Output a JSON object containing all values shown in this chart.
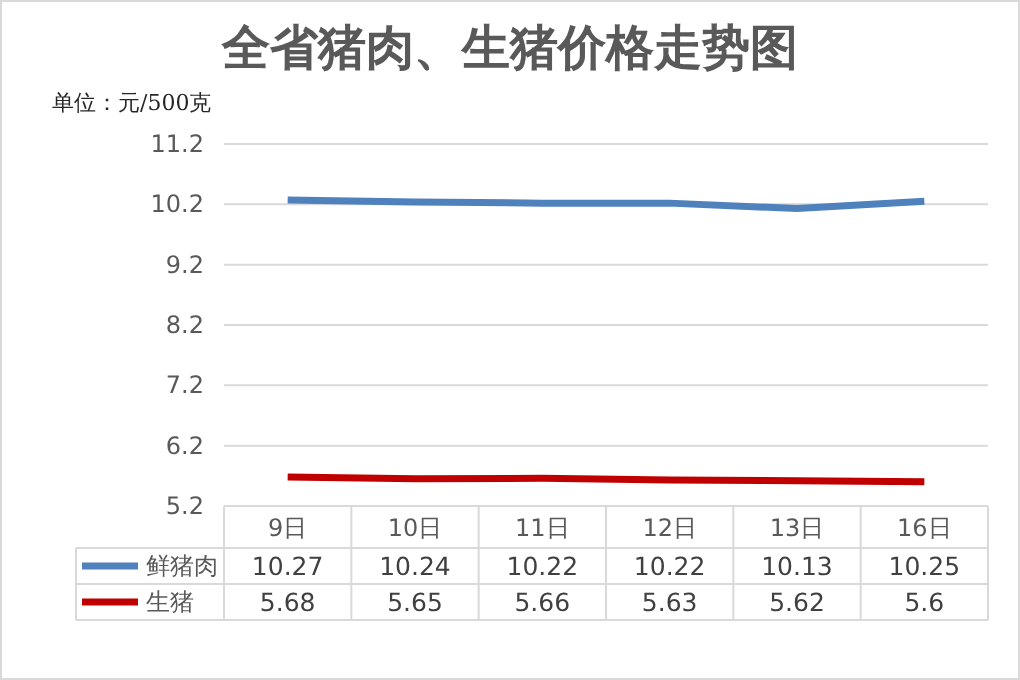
{
  "chart_data": {
    "type": "line",
    "title": "全省猪肉、生猪价格走势图",
    "ylabel": "单位：元/500克",
    "categories": [
      "9日",
      "10日",
      "11日",
      "12日",
      "13日",
      "16日"
    ],
    "series": [
      {
        "name": "鲜猪肉",
        "color": "#4f81bd",
        "values": [
          10.27,
          10.24,
          10.22,
          10.22,
          10.13,
          10.25
        ]
      },
      {
        "name": "生猪",
        "color": "#c00000",
        "values": [
          5.68,
          5.65,
          5.66,
          5.63,
          5.62,
          5.6
        ]
      }
    ],
    "ylim": [
      5.2,
      11.2
    ],
    "yticks": [
      5.2,
      6.2,
      7.2,
      8.2,
      9.2,
      10.2,
      11.2
    ],
    "grid": "y",
    "legend": "bottom",
    "data_labels": true,
    "marker": "none",
    "line_style": "solid"
  }
}
